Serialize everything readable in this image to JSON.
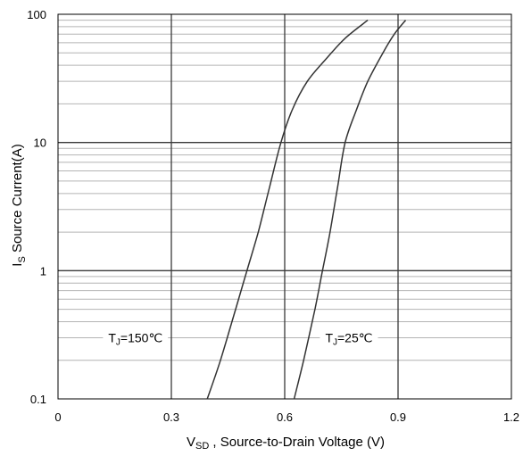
{
  "chart_data": {
    "type": "line",
    "title": "",
    "x_axis": {
      "label_main": "V",
      "label_sub": "SD",
      "label_rest": " , Source-to-Drain Voltage (V)",
      "min": 0,
      "max": 1.2,
      "ticks": [
        0,
        0.3,
        0.6,
        0.9,
        1.2
      ],
      "tick_labels": [
        "0",
        "0.3",
        "0.6",
        "0.9",
        "1.2"
      ],
      "major_grid": [
        0.3,
        0.6,
        0.9
      ]
    },
    "y_axis": {
      "label_main": "I",
      "label_sub": "S",
      "label_rest": " Source Current(A)",
      "scale": "log",
      "min": 0.1,
      "max": 100,
      "ticks": [
        0.1,
        1,
        10,
        100
      ],
      "tick_labels": [
        "0.1",
        "1",
        "10",
        "100"
      ],
      "grid": "major and minor"
    },
    "series": [
      {
        "name": "T_J=150℃",
        "label_main": "T",
        "label_sub": "J",
        "label_rest": "=150℃",
        "label_at": {
          "x": 0.205,
          "y": 0.3
        },
        "color": "#333333",
        "points": [
          {
            "x": 0.395,
            "y": 0.1
          },
          {
            "x": 0.43,
            "y": 0.2
          },
          {
            "x": 0.47,
            "y": 0.5
          },
          {
            "x": 0.5,
            "y": 1.0
          },
          {
            "x": 0.53,
            "y": 2.0
          },
          {
            "x": 0.56,
            "y": 4.5
          },
          {
            "x": 0.59,
            "y": 10
          },
          {
            "x": 0.62,
            "y": 18
          },
          {
            "x": 0.66,
            "y": 30
          },
          {
            "x": 0.71,
            "y": 45
          },
          {
            "x": 0.76,
            "y": 65
          },
          {
            "x": 0.82,
            "y": 90
          }
        ]
      },
      {
        "name": "T_J=25℃",
        "label_main": "T",
        "label_sub": "J",
        "label_rest": "=25℃",
        "label_at": {
          "x": 0.77,
          "y": 0.3
        },
        "color": "#333333",
        "points": [
          {
            "x": 0.625,
            "y": 0.1
          },
          {
            "x": 0.65,
            "y": 0.2
          },
          {
            "x": 0.68,
            "y": 0.5
          },
          {
            "x": 0.7,
            "y": 1.0
          },
          {
            "x": 0.72,
            "y": 2.0
          },
          {
            "x": 0.74,
            "y": 4.5
          },
          {
            "x": 0.76,
            "y": 10
          },
          {
            "x": 0.79,
            "y": 18
          },
          {
            "x": 0.82,
            "y": 30
          },
          {
            "x": 0.86,
            "y": 50
          },
          {
            "x": 0.89,
            "y": 70
          },
          {
            "x": 0.92,
            "y": 90
          }
        ]
      }
    ]
  }
}
